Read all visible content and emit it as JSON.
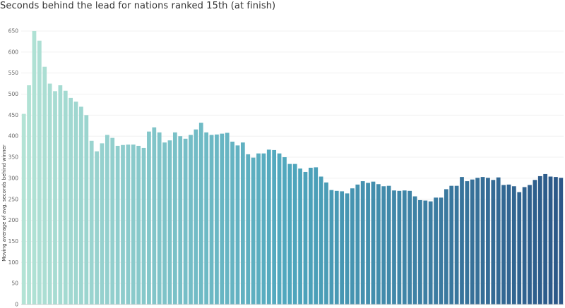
{
  "chart_data": {
    "type": "bar",
    "title": "Seconds behind the lead for nations ranked 15th (at finish)",
    "xlabel": "",
    "ylabel": "Moving average of avg. seconds behind winner",
    "ylim": [
      0,
      660
    ],
    "yticks": [
      0,
      50,
      100,
      150,
      200,
      250,
      300,
      350,
      400,
      450,
      500,
      550,
      600,
      650
    ],
    "grid": true,
    "legend": "none",
    "color_start": "#b3e3d5",
    "color_mid": "#4ea6bd",
    "color_end": "#2b5788",
    "values": [
      453,
      521,
      650,
      627,
      565,
      525,
      507,
      521,
      508,
      491,
      482,
      470,
      450,
      389,
      364,
      383,
      403,
      396,
      377,
      379,
      380,
      380,
      377,
      372,
      411,
      421,
      409,
      385,
      390,
      409,
      400,
      394,
      403,
      416,
      432,
      409,
      403,
      404,
      406,
      408,
      387,
      378,
      385,
      357,
      349,
      359,
      359,
      368,
      367,
      359,
      350,
      334,
      334,
      323,
      315,
      325,
      326,
      304,
      290,
      272,
      270,
      269,
      264,
      276,
      285,
      293,
      289,
      292,
      286,
      281,
      282,
      271,
      270,
      271,
      270,
      257,
      248,
      247,
      245,
      254,
      254,
      274,
      282,
      282,
      303,
      293,
      297,
      301,
      303,
      301,
      296,
      302,
      284,
      285,
      281,
      267,
      279,
      284,
      296,
      305,
      310,
      304,
      303,
      301
    ]
  }
}
